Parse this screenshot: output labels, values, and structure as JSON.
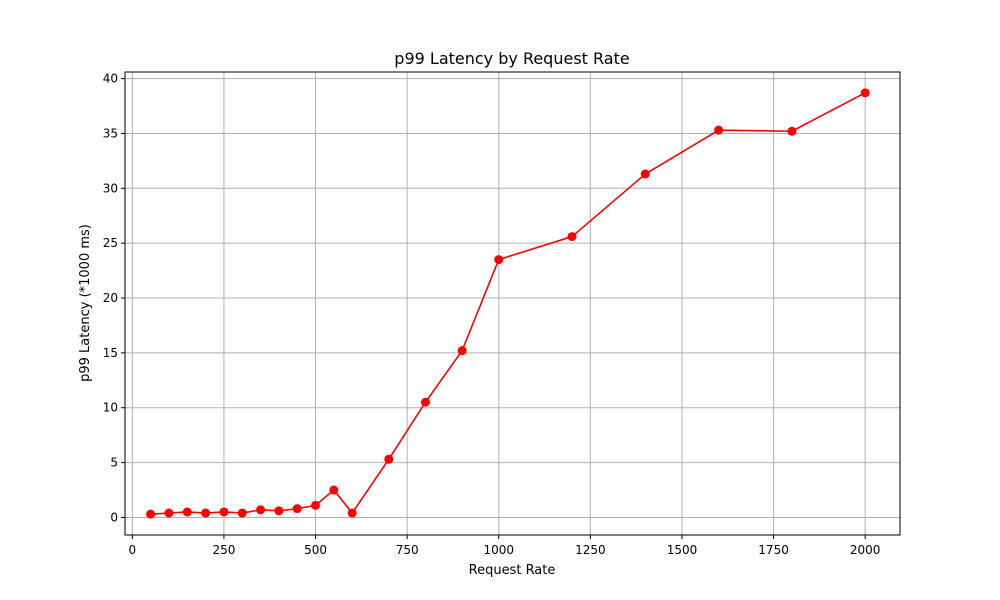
{
  "chart_data": {
    "type": "line",
    "title": "p99 Latency by Request Rate",
    "xlabel": "Request Rate",
    "ylabel": "p99 Latency (*1000 ms)",
    "xlim": [
      -20,
      2095
    ],
    "ylim": [
      -1.6,
      40.6
    ],
    "xticks": [
      0,
      250,
      500,
      750,
      1000,
      1250,
      1500,
      1750,
      2000
    ],
    "yticks": [
      0,
      5,
      10,
      15,
      20,
      25,
      30,
      35,
      40
    ],
    "grid": true,
    "series": [
      {
        "color": "#ff0000",
        "marker": "circle",
        "x": [
          50,
          100,
          150,
          200,
          250,
          300,
          350,
          400,
          450,
          500,
          550,
          600,
          700,
          800,
          900,
          1000,
          1200,
          1400,
          1600,
          1800,
          2000
        ],
        "y": [
          0.3,
          0.4,
          0.5,
          0.4,
          0.5,
          0.4,
          0.7,
          0.6,
          0.8,
          1.1,
          2.5,
          0.4,
          5.3,
          10.5,
          15.2,
          23.5,
          25.6,
          31.3,
          35.3,
          35.2,
          38.7
        ]
      }
    ]
  }
}
